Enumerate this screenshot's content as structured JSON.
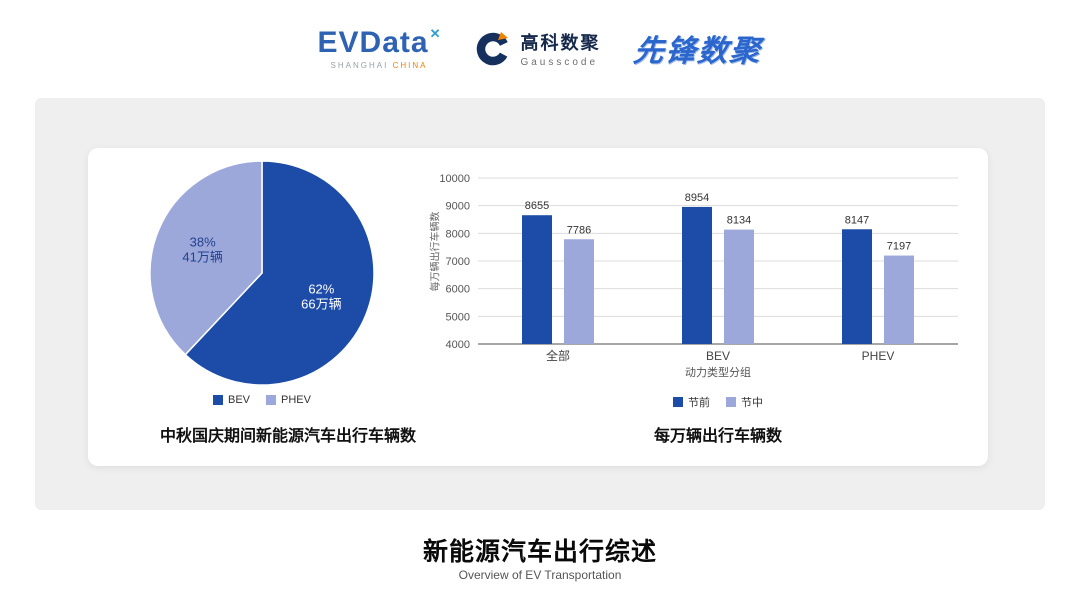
{
  "header": {
    "evdata": {
      "wordmark": "EVData",
      "superscript": "✕",
      "subtext_left": "SHANGHAI",
      "subtext_right": "CHINA"
    },
    "gausscode": {
      "name_cn": "高科数聚",
      "name_en": "Gausscode"
    },
    "pioneer": {
      "wordmark": "先锋数聚"
    }
  },
  "colors": {
    "primary_blue": "#1d4ca8",
    "light_purple": "#9da8da",
    "panel_bg": "#efefef",
    "accent_orange": "#f08300"
  },
  "chart_data": [
    {
      "type": "pie",
      "title": "中秋国庆期间新能源汽车出行车辆数",
      "labels": [
        "BEV",
        "PHEV"
      ],
      "values": [
        62,
        38
      ],
      "value_labels": [
        [
          "62%",
          "66万辆"
        ],
        [
          "38%",
          "41万辆"
        ]
      ],
      "value_label_colors": [
        "#ffffff",
        "#23418f"
      ],
      "colors": [
        "#1d4ca8",
        "#9da8da"
      ],
      "legend_position": "bottom"
    },
    {
      "type": "bar",
      "title": "每万辆出行车辆数",
      "categories": [
        "全部",
        "BEV",
        "PHEV"
      ],
      "series": [
        {
          "name": "节前",
          "color": "#1d4ca8",
          "values": [
            8655,
            8954,
            8147
          ]
        },
        {
          "name": "节中",
          "color": "#9da8da",
          "values": [
            7786,
            8134,
            7197
          ]
        }
      ],
      "xlabel": "动力类型分组",
      "ylabel": "每万辆出行车辆数",
      "ylim": [
        4000,
        10000
      ],
      "ytick_step": 1000,
      "grid": true,
      "legend_position": "bottom"
    }
  ],
  "footer": {
    "title": "新能源汽车出行综述",
    "subtitle": "Overview of EV Transportation"
  }
}
